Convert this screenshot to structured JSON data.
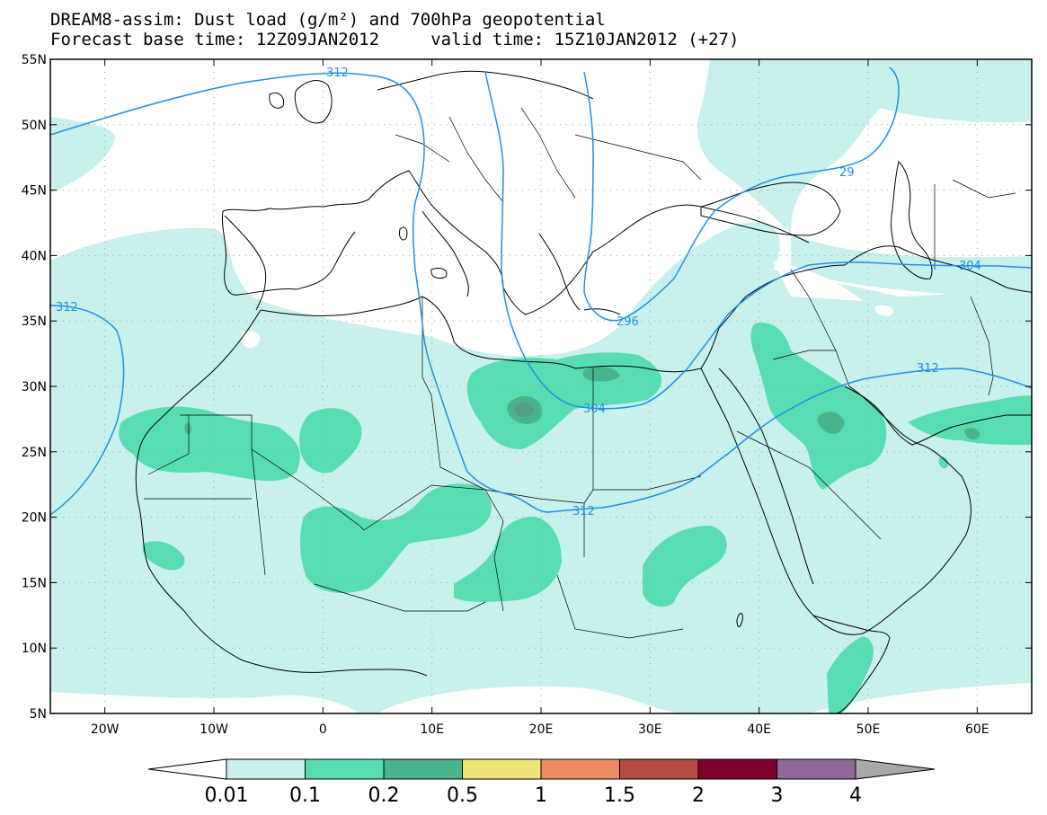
{
  "header": {
    "title_line1": "DREAM8-assim: Dust load (g/m²) and 700hPa geopotential",
    "title_line2": "Forecast base time: 12Z09JAN2012     valid time: 15Z10JAN2012 (+27)"
  },
  "axes": {
    "lat_labels": [
      "55N",
      "50N",
      "45N",
      "40N",
      "35N",
      "30N",
      "25N",
      "20N",
      "15N",
      "10N",
      "5N"
    ],
    "lat_values": [
      55,
      50,
      45,
      40,
      35,
      30,
      25,
      20,
      15,
      10,
      5
    ],
    "lon_labels": [
      "20W",
      "10W",
      "0",
      "10E",
      "20E",
      "30E",
      "40E",
      "50E",
      "60E"
    ],
    "lon_values": [
      -20,
      -10,
      0,
      10,
      20,
      30,
      40,
      50,
      60
    ],
    "lon_range": [
      -25,
      65
    ],
    "lat_range": [
      5,
      55
    ]
  },
  "contours": {
    "label_312_a": "312",
    "label_312_b": "312",
    "label_312_c": "312",
    "label_312_d": "312",
    "label_304_a": "304",
    "label_304_b": "304",
    "label_296": "296",
    "label_29x": "29",
    "line_color": "#1e90e8"
  },
  "colorbar": {
    "labels": [
      "0.01",
      "0.1",
      "0.2",
      "0.5",
      "1",
      "1.5",
      "2",
      "3",
      "4"
    ],
    "colors": [
      "#c8f0ec",
      "#58dcb4",
      "#48b48c",
      "#f0e678",
      "#ec8c64",
      "#b44c44",
      "#800030",
      "#906898"
    ],
    "under_color": "#ffffff",
    "over_color": "#a8a8a8"
  },
  "dust_colors": {
    "light": "#c8f0ec",
    "medium": "#58dcb4",
    "dark": "#48b48c",
    "darker": "#5a9a84"
  }
}
